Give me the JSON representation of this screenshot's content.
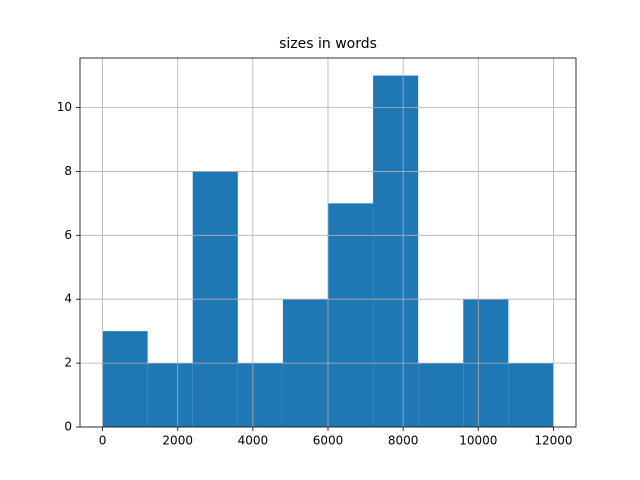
{
  "chart_data": {
    "type": "histogram",
    "title": "sizes in words",
    "bins": [
      0,
      1200,
      2400,
      3600,
      4800,
      6000,
      7200,
      8400,
      9600,
      10800,
      12000
    ],
    "values": [
      3,
      2,
      8,
      2,
      4,
      7,
      11,
      2,
      4,
      2
    ],
    "color": "#1f77b4",
    "xlim": [
      -600,
      12600
    ],
    "xticks": [
      0,
      2000,
      4000,
      6000,
      8000,
      10000,
      12000
    ],
    "ylim": [
      0,
      11.55
    ],
    "yticks": [
      0,
      2,
      4,
      6,
      8,
      10
    ],
    "grid": true
  }
}
